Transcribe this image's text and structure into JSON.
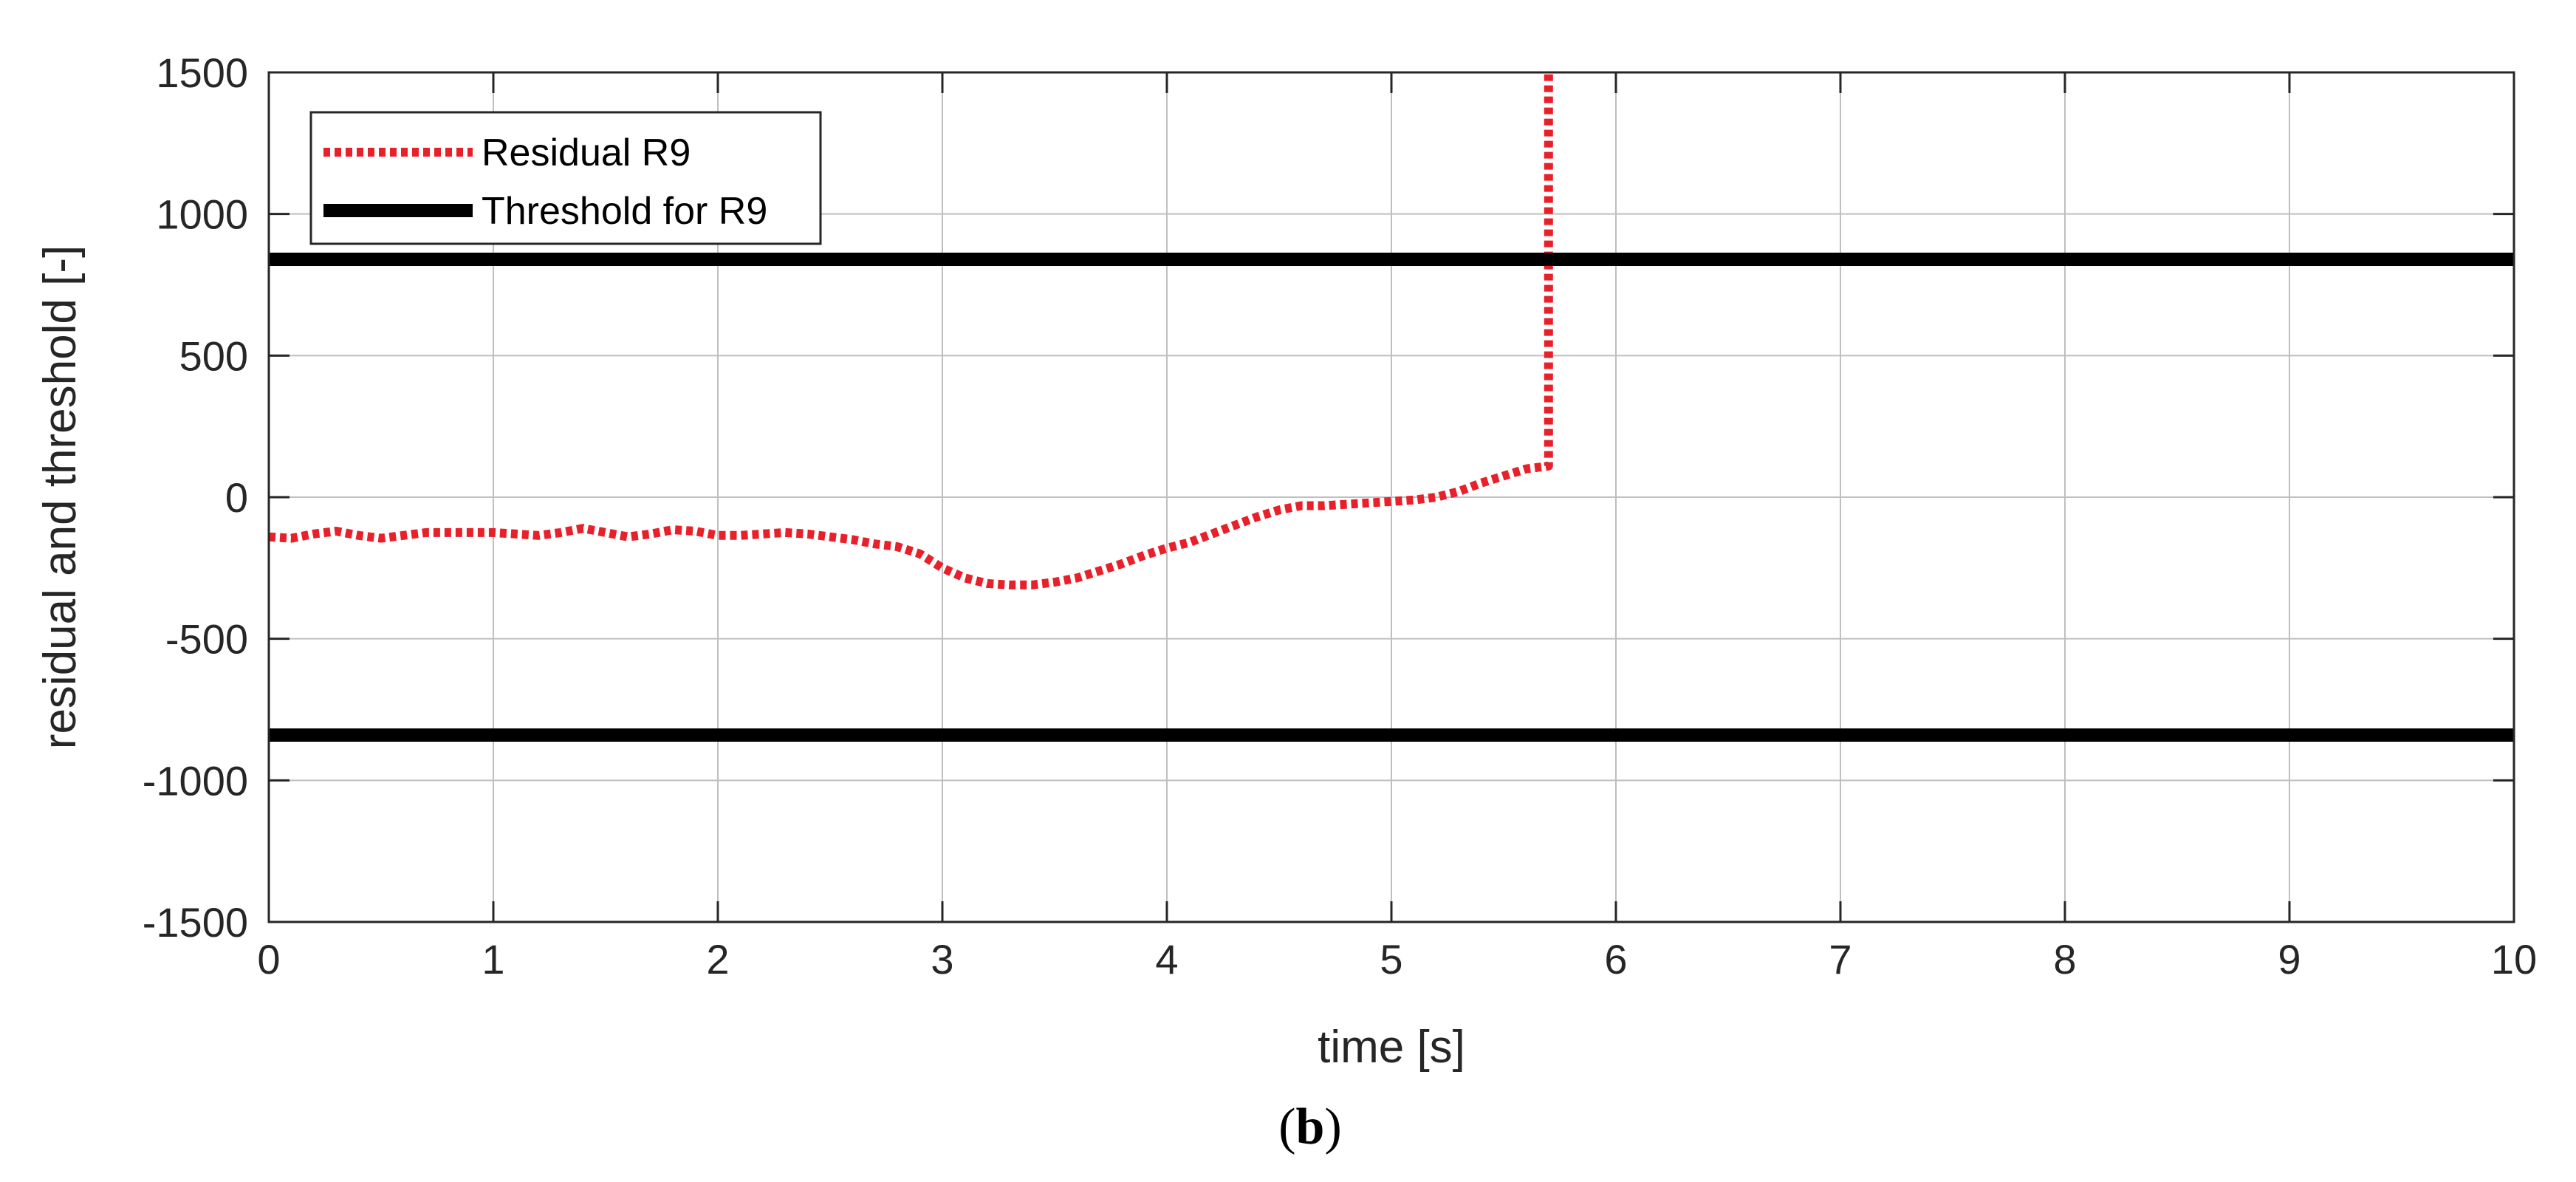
{
  "chart_data": {
    "type": "line",
    "title": "",
    "xlabel": "time [s]",
    "ylabel": "residual and threshold [-]",
    "xlim": [
      0,
      10
    ],
    "ylim": [
      -1500,
      1500
    ],
    "x_ticks": [
      0,
      1,
      2,
      3,
      4,
      5,
      6,
      7,
      8,
      9,
      10
    ],
    "y_ticks": [
      1500,
      1000,
      500,
      0,
      -500,
      -1000,
      -1500
    ],
    "grid": true,
    "legend_position": "top-left",
    "panel_label": {
      "open": "(",
      "bold": "b",
      "close": ")"
    },
    "colors": {
      "residual": "#e8202a",
      "threshold": "#000000",
      "grid": "#bfbfbf",
      "axis": "#262626"
    },
    "series": [
      {
        "name": "Residual R9",
        "style": "dotted",
        "x": [
          0,
          0.1,
          0.2,
          0.3,
          0.4,
          0.5,
          0.6,
          0.7,
          0.8,
          0.9,
          1.0,
          1.1,
          1.2,
          1.3,
          1.4,
          1.5,
          1.6,
          1.7,
          1.8,
          1.9,
          2.0,
          2.1,
          2.2,
          2.3,
          2.4,
          2.5,
          2.6,
          2.7,
          2.8,
          2.9,
          3.0,
          3.1,
          3.2,
          3.3,
          3.4,
          3.5,
          3.6,
          3.7,
          3.8,
          3.9,
          4.0,
          4.1,
          4.2,
          4.3,
          4.4,
          4.5,
          4.6,
          4.7,
          4.8,
          4.9,
          5.0,
          5.1,
          5.2,
          5.3,
          5.4,
          5.5,
          5.6,
          5.7,
          5.7
        ],
        "y": [
          -140,
          -145,
          -130,
          -120,
          -135,
          -145,
          -135,
          -125,
          -125,
          -125,
          -125,
          -130,
          -135,
          -125,
          -110,
          -125,
          -140,
          -130,
          -115,
          -120,
          -135,
          -135,
          -130,
          -125,
          -130,
          -140,
          -150,
          -165,
          -175,
          -200,
          -250,
          -285,
          -305,
          -310,
          -310,
          -300,
          -285,
          -260,
          -235,
          -205,
          -180,
          -160,
          -130,
          -100,
          -70,
          -45,
          -30,
          -30,
          -25,
          -20,
          -15,
          -10,
          0,
          20,
          50,
          75,
          100,
          110,
          1500
        ]
      },
      {
        "name": "Threshold for R9",
        "style": "solid",
        "x": [
          0,
          10
        ],
        "y": [
          840,
          840
        ]
      },
      {
        "name": "",
        "style": "solid",
        "x": [
          0,
          10
        ],
        "y": [
          -840,
          -840
        ]
      }
    ]
  }
}
